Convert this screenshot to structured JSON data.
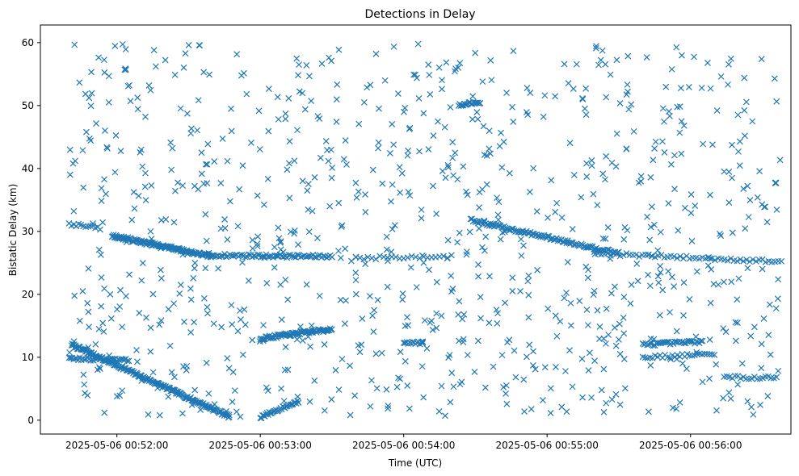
{
  "chart_data": {
    "type": "scatter",
    "title": "Detections in Delay",
    "xlabel": "Time (UTC)",
    "ylabel": "Bistatic Delay (km)",
    "marker": "x",
    "color": "#1f77b4",
    "grid": false,
    "x_is_time": true,
    "x_range": [
      "2025-05-06 00:51:28",
      "2025-05-06 00:56:42"
    ],
    "ylim": [
      -2.2,
      62.8
    ],
    "xticks": [
      "2025-05-06 00:52:00",
      "2025-05-06 00:53:00",
      "2025-05-06 00:54:00",
      "2025-05-06 00:55:00",
      "2025-05-06 00:56:00"
    ],
    "yticks": [
      0,
      10,
      20,
      30,
      40,
      50,
      60
    ],
    "tracks": [
      {
        "from": [
          "2025-05-06 00:51:41",
          12.0
        ],
        "to": [
          "2025-05-06 00:52:47",
          0.6
        ],
        "points": 190
      },
      {
        "from": [
          "2025-05-06 00:51:58",
          29.3
        ],
        "to": [
          "2025-05-06 00:52:40",
          26.0
        ],
        "points": 130
      },
      {
        "from": [
          "2025-05-06 00:52:40",
          26.2
        ],
        "to": [
          "2025-05-06 00:53:30",
          26.0
        ],
        "points": 70
      },
      {
        "from": [
          "2025-05-06 00:53:00",
          0.5
        ],
        "to": [
          "2025-05-06 00:53:16",
          3.0
        ],
        "points": 35
      },
      {
        "from": [
          "2025-05-06 00:53:00",
          13.0
        ],
        "to": [
          "2025-05-06 00:53:30",
          14.5
        ],
        "points": 80
      },
      {
        "from": [
          "2025-05-06 00:51:40",
          31.2
        ],
        "to": [
          "2025-05-06 00:51:53",
          30.5
        ],
        "points": 14
      },
      {
        "from": [
          "2025-05-06 00:51:40",
          9.8
        ],
        "to": [
          "2025-05-06 00:52:05",
          9.6
        ],
        "points": 40
      },
      {
        "from": [
          "2025-05-06 00:54:28",
          31.8
        ],
        "to": [
          "2025-05-06 00:55:30",
          26.5
        ],
        "points": 120
      },
      {
        "from": [
          "2025-05-06 00:55:20",
          26.5
        ],
        "to": [
          "2025-05-06 00:56:38",
          25.2
        ],
        "points": 60
      },
      {
        "from": [
          "2025-05-06 00:54:23",
          50.0
        ],
        "to": [
          "2025-05-06 00:54:32",
          50.6
        ],
        "points": 20
      },
      {
        "from": [
          "2025-05-06 00:54:00",
          12.3
        ],
        "to": [
          "2025-05-06 00:54:08",
          12.3
        ],
        "points": 14
      },
      {
        "from": [
          "2025-05-06 00:55:40",
          12.0
        ],
        "to": [
          "2025-05-06 00:56:05",
          12.5
        ],
        "points": 40
      },
      {
        "from": [
          "2025-05-06 00:56:14",
          6.8
        ],
        "to": [
          "2025-05-06 00:56:36",
          6.8
        ],
        "points": 20
      },
      {
        "from": [
          "2025-05-06 00:55:40",
          10.0
        ],
        "to": [
          "2025-05-06 00:56:10",
          10.5
        ],
        "points": 30
      },
      {
        "from": [
          "2025-05-06 00:53:40",
          25.8
        ],
        "to": [
          "2025-05-06 00:54:20",
          26.0
        ],
        "points": 25
      }
    ],
    "noise": {
      "count": 900,
      "x_range": [
        "2025-05-06 00:51:40",
        "2025-05-06 00:56:38"
      ],
      "y_range": [
        0.5,
        59.8
      ]
    }
  }
}
